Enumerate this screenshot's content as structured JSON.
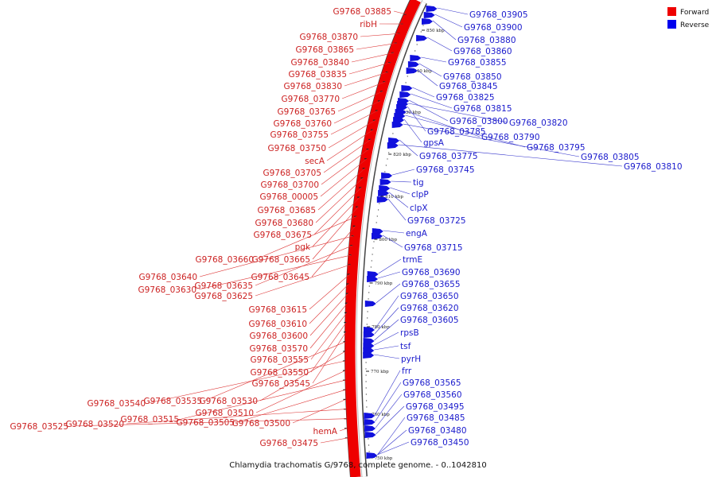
{
  "caption": "Chlamydia trachomatis G/9768, complete genome. - 0..1042810",
  "legend": {
    "forward": {
      "label": "Forward",
      "color": "#ee0000"
    },
    "reverse": {
      "label": "Reverse",
      "color": "#0000ee"
    }
  },
  "ticks": [
    "850 kbp",
    "840 kbp",
    "830 kbp",
    "820 kbp",
    "810 kbp",
    "800 kbp",
    "790 kbp",
    "780 kbp",
    "770 kbp",
    "760 kbp",
    "750 kbp"
  ],
  "forward_labels": [
    "G9768_03885",
    "ribH",
    "G9768_03870",
    "G9768_03865",
    "G9768_03840",
    "G9768_03835",
    "G9768_03830",
    "G9768_03770",
    "G9768_03765",
    "G9768_03760",
    "G9768_03755",
    "G9768_03750",
    "secA",
    "G9768_03705",
    "G9768_03700",
    "G9768_00005",
    "G9768_03685",
    "G9768_03680",
    "G9768_03675",
    "pgk",
    "G9768_03665",
    "G9768_03660",
    "G9768_03645",
    "G9768_03640",
    "G9768_03635",
    "G9768_03630",
    "G9768_03625",
    "G9768_03615",
    "G9768_03610",
    "G9768_03600",
    "G9768_03570",
    "G9768_03555",
    "G9768_03550",
    "G9768_03545",
    "G9768_03535",
    "G9768_03530",
    "G9768_03540",
    "G9768_03510",
    "G9768_03515",
    "G9768_03505",
    "G9768_03500",
    "G9768_03520",
    "G9768_03525",
    "hemA",
    "G9768_03475"
  ],
  "reverse_labels": [
    "G9768_03905",
    "G9768_03900",
    "G9768_03880",
    "G9768_03860",
    "G9768_03855",
    "G9768_03850",
    "G9768_03845",
    "G9768_03825",
    "G9768_03815",
    "G9768_03800",
    "G9768_03820",
    "G9768_03785",
    "G9768_03790",
    "G9768_03795",
    "gpsA",
    "G9768_03805",
    "G9768_03775",
    "G9768_03810",
    "G9768_03745",
    "tig",
    "clpP",
    "clpX",
    "G9768_03725",
    "engA",
    "G9768_03715",
    "trmE",
    "G9768_03690",
    "G9768_03655",
    "G9768_03650",
    "G9768_03620",
    "G9768_03605",
    "rpsB",
    "tsf",
    "pyrH",
    "frr",
    "G9768_03565",
    "G9768_03560",
    "G9768_03495",
    "G9768_03485",
    "G9768_03480",
    "G9768_03450"
  ]
}
